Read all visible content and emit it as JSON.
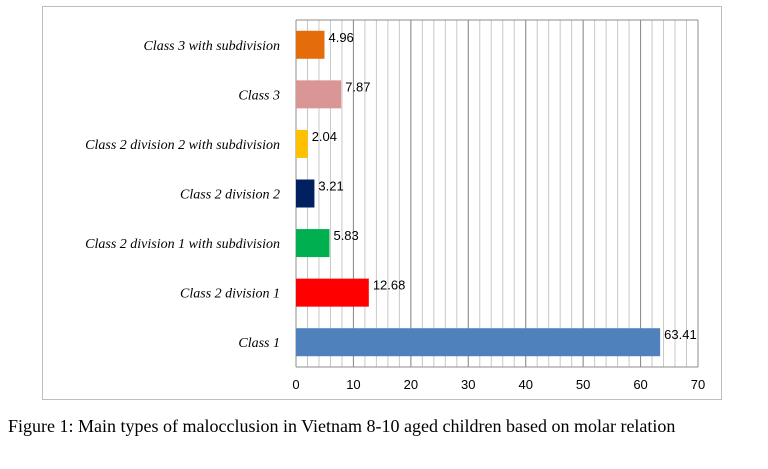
{
  "chart_data": {
    "type": "bar",
    "orientation": "horizontal",
    "categories": [
      "Class 3 with subdivision",
      "Class 3",
      "Class 2 division 2 with subdivision",
      "Class 2 division 2",
      "Class 2 division 1 with subdivision",
      "Class 2 division 1",
      "Class 1"
    ],
    "values": [
      4.96,
      7.87,
      2.04,
      3.21,
      5.83,
      12.68,
      63.41
    ],
    "value_labels": [
      "4.96",
      "7.87",
      "2.04",
      "3.21",
      "5.83",
      "12.68",
      "63.41"
    ],
    "colors": [
      "#e46c0a",
      "#d99694",
      "#ffc000",
      "#002060",
      "#00b050",
      "#ff0000",
      "#4f81bd"
    ],
    "xlim": [
      0,
      70
    ],
    "xticks": [
      0,
      10,
      20,
      30,
      40,
      50,
      60,
      70
    ],
    "minor_grid_step": 2,
    "grid": true,
    "legend": "none",
    "title": "",
    "xlabel": "",
    "ylabel": ""
  },
  "caption": "Figure 1: Main types of malocclusion in Vietnam 8-10 aged children based on molar relation"
}
